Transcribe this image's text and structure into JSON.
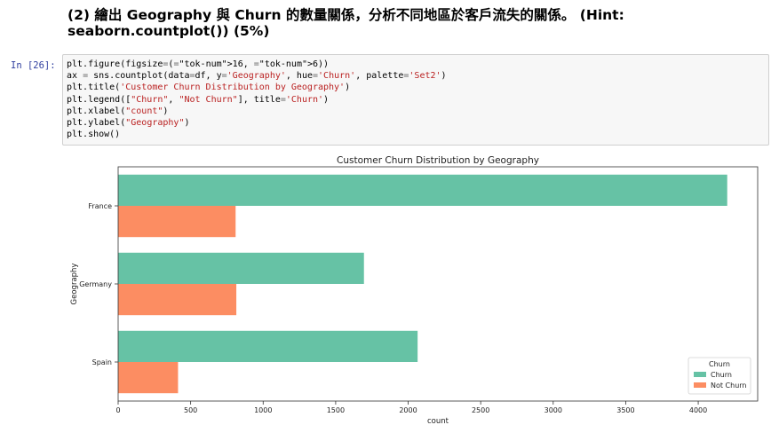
{
  "markdown": {
    "heading_line1": "(2) 繪出 Geography 與 Churn 的數量關係，分析不同地區於客戶流失的關係。 (Hint:",
    "heading_line2": "seaborn.countplot()) (5%)"
  },
  "cell": {
    "prompt": "In [26]:",
    "code_lines": [
      "plt.figure(figsize=(16, 6))",
      "ax = sns.countplot(data=df, y='Geography', hue='Churn', palette='Set2')",
      "plt.title('Customer Churn Distribution by Geography')",
      "plt.legend([\"Churn\", \"Not Churn\"], title='Churn')",
      "plt.xlabel(\"count\")",
      "plt.ylabel(\"Geography\")",
      "plt.show()"
    ]
  },
  "chart_data": {
    "type": "bar",
    "orientation": "horizontal",
    "title": "Customer Churn Distribution by Geography",
    "xlabel": "count",
    "ylabel": "Geography",
    "categories": [
      "France",
      "Germany",
      "Spain"
    ],
    "series": [
      {
        "name": "Churn",
        "values": [
          4200,
          1695,
          2065
        ],
        "color": "#66c2a5"
      },
      {
        "name": "Not Churn",
        "values": [
          810,
          815,
          413
        ],
        "color": "#fc8d62"
      }
    ],
    "xlim": [
      0,
      4410
    ],
    "xticks": [
      0,
      500,
      1000,
      1500,
      2000,
      2500,
      3000,
      3500,
      4000
    ],
    "legend_title": "Churn",
    "legend_position": "lower-right",
    "grid": false
  }
}
